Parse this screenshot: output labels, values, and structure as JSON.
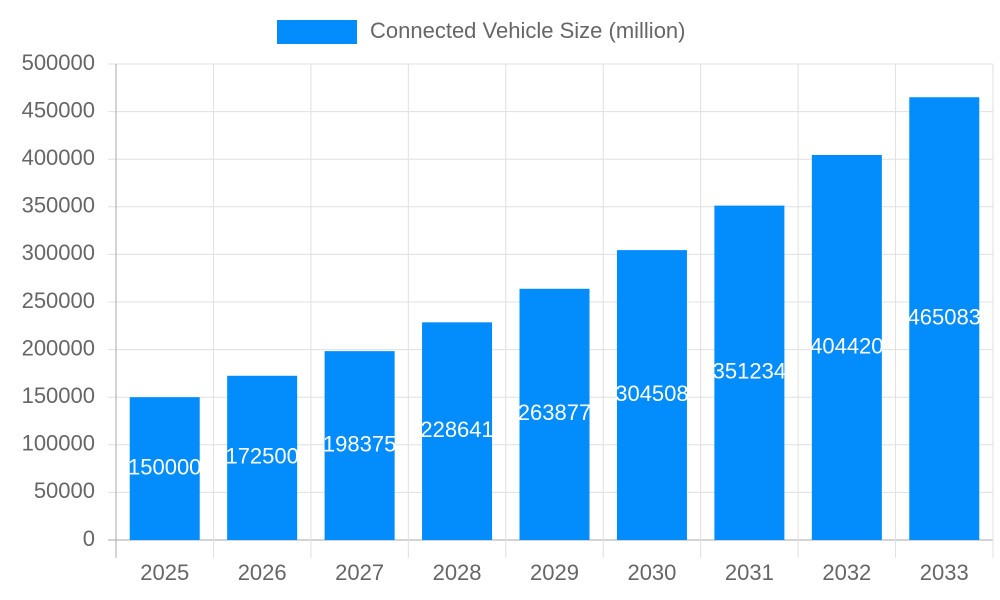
{
  "chart_data": {
    "type": "bar",
    "categories": [
      "2025",
      "2026",
      "2027",
      "2028",
      "2029",
      "2030",
      "2031",
      "2032",
      "2033"
    ],
    "series": [
      {
        "name": "Connected Vehicle Size (million)",
        "color": "#038cfc",
        "values": [
          150000,
          172500,
          198375,
          228641,
          263877,
          304508,
          351234,
          404420,
          465083
        ]
      }
    ],
    "ylim": [
      0,
      500000
    ],
    "yticks": [
      0,
      50000,
      100000,
      150000,
      200000,
      250000,
      300000,
      350000,
      400000,
      450000,
      500000
    ],
    "grid": true,
    "legend": "top"
  }
}
